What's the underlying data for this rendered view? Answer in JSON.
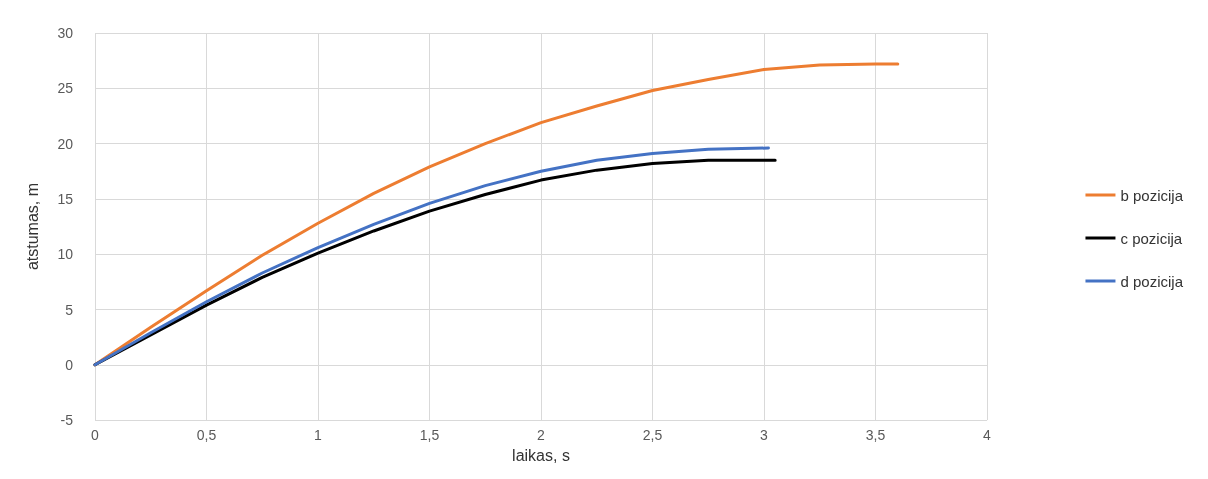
{
  "chart_data": {
    "type": "line",
    "xlabel": "laikas, s",
    "ylabel": "atstumas, m",
    "xlim": [
      0,
      4
    ],
    "xticks": [
      0,
      {
        "value": 0.5,
        "label": "0,5"
      },
      1,
      {
        "value": 1.5,
        "label": "1,5"
      },
      2,
      {
        "value": 2.5,
        "label": "2,5"
      },
      3,
      {
        "value": 3.5,
        "label": "3,5"
      },
      4
    ],
    "ylim": [
      -5,
      30
    ],
    "yticks": [
      -5,
      0,
      5,
      10,
      15,
      20,
      25,
      30
    ],
    "grid": true,
    "legend": "right",
    "marker": "none",
    "line_style": "solid",
    "series": [
      {
        "name": "b pozicija",
        "color": "#ed7d31",
        "x": [
          0,
          0.25,
          0.5,
          0.75,
          1,
          1.25,
          1.5,
          1.75,
          2,
          2.25,
          2.5,
          2.75,
          3,
          3.25,
          3.5,
          3.6
        ],
        "values": [
          0,
          3.4,
          6.7,
          9.9,
          12.8,
          15.5,
          17.9,
          20,
          21.9,
          23.4,
          24.8,
          25.8,
          26.7,
          27.1,
          27.2,
          27.2
        ]
      },
      {
        "name": "c pozicija",
        "color": "#000000",
        "x": [
          0,
          0.25,
          0.5,
          0.75,
          1,
          1.25,
          1.5,
          1.75,
          2,
          2.25,
          2.5,
          2.75,
          3.05
        ],
        "values": [
          0,
          2.7,
          5.4,
          7.9,
          10.1,
          12.1,
          13.9,
          15.4,
          16.7,
          17.6,
          18.2,
          18.5,
          18.5
        ]
      },
      {
        "name": "d pozicija",
        "color": "#4472c4",
        "x": [
          0,
          0.25,
          0.5,
          0.75,
          1,
          1.25,
          1.5,
          1.75,
          2,
          2.25,
          2.5,
          2.75,
          3.02
        ],
        "values": [
          0,
          2.9,
          5.7,
          8.3,
          10.6,
          12.7,
          14.6,
          16.2,
          17.5,
          18.5,
          19.1,
          19.5,
          19.6
        ]
      }
    ]
  }
}
